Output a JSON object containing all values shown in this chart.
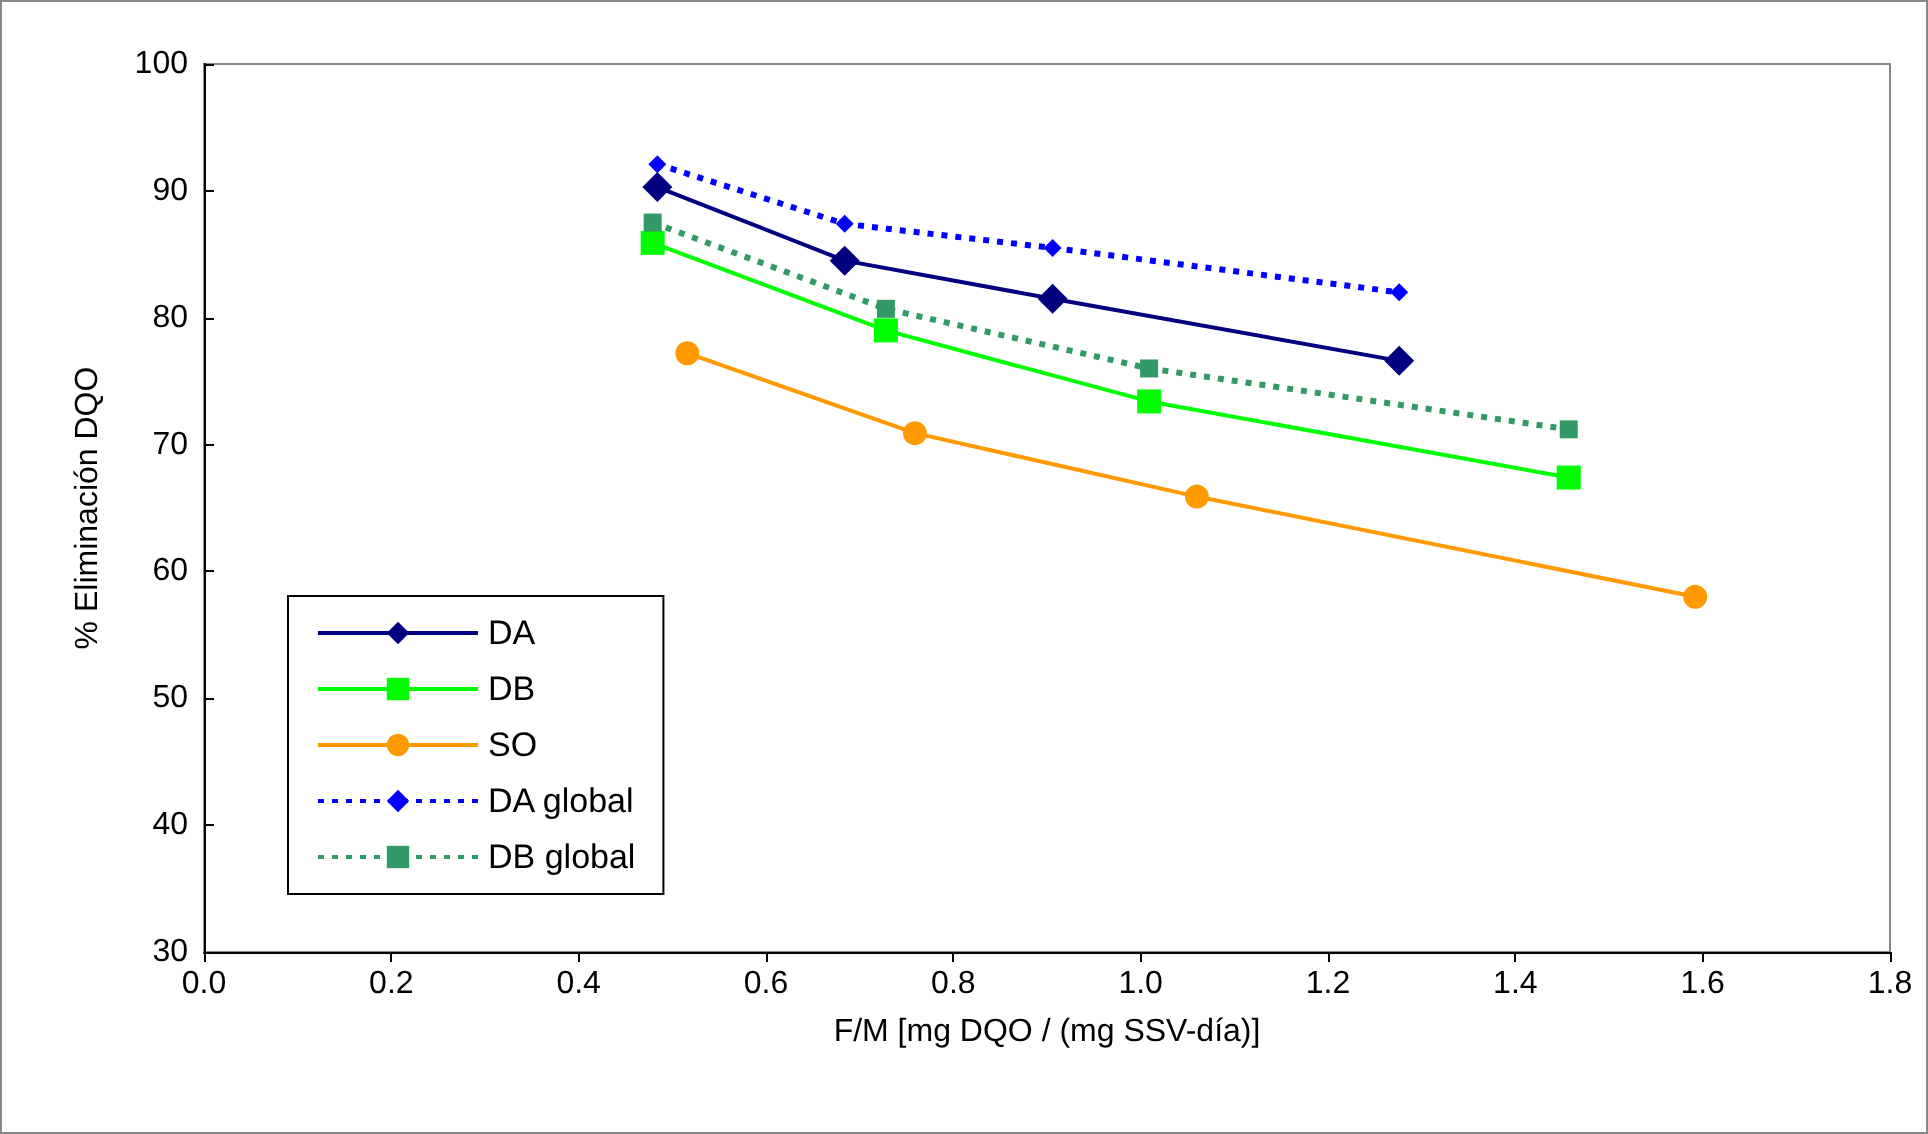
{
  "chart_data": {
    "type": "line",
    "xlabel": "F/M [mg DQO / (mg SSV-día)]",
    "ylabel": "% Eliminación DQO",
    "xlim": [
      0,
      1.8
    ],
    "xticks": [
      {
        "value": 0,
        "label": "0.0"
      },
      0.2,
      0.4,
      0.6,
      0.8,
      {
        "value": 1,
        "label": "1.0"
      },
      1.2,
      1.4,
      1.6,
      1.8
    ],
    "ylim": [
      30,
      100
    ],
    "yticks": [
      30,
      40,
      50,
      60,
      70,
      80,
      90,
      100
    ],
    "grid": false,
    "legend": "bottom left",
    "series": [
      {
        "name": "DA",
        "color": "#000080",
        "marker": "diamond",
        "line_style": "solid",
        "x": [
          0.484,
          0.684,
          0.906,
          1.276
        ],
        "values": [
          90.3,
          84.5,
          81.5,
          76.6
        ]
      },
      {
        "name": "DB",
        "color": "#00ff00",
        "marker": "square",
        "line_style": "solid",
        "x": [
          0.479,
          0.728,
          1.009,
          1.457
        ],
        "values": [
          85.9,
          79.0,
          73.4,
          67.4
        ]
      },
      {
        "name": "SO",
        "color": "#ff9900",
        "marker": "circle",
        "line_style": "solid",
        "x": [
          0.516,
          0.759,
          1.06,
          1.592
        ],
        "values": [
          77.2,
          70.9,
          65.9,
          58.0
        ]
      },
      {
        "name": "DA global",
        "color": "#0000ff",
        "marker": "diamond",
        "line_style": "dotted",
        "x": [
          0.484,
          0.684,
          0.906,
          1.276
        ],
        "values": [
          92.1,
          87.4,
          85.5,
          82.0
        ]
      },
      {
        "name": "DB global",
        "color": "#339966",
        "marker": "square",
        "line_style": "dotted",
        "x": [
          0.479,
          0.728,
          1.009,
          1.457
        ],
        "values": [
          87.5,
          80.7,
          76.0,
          71.2
        ]
      }
    ]
  }
}
